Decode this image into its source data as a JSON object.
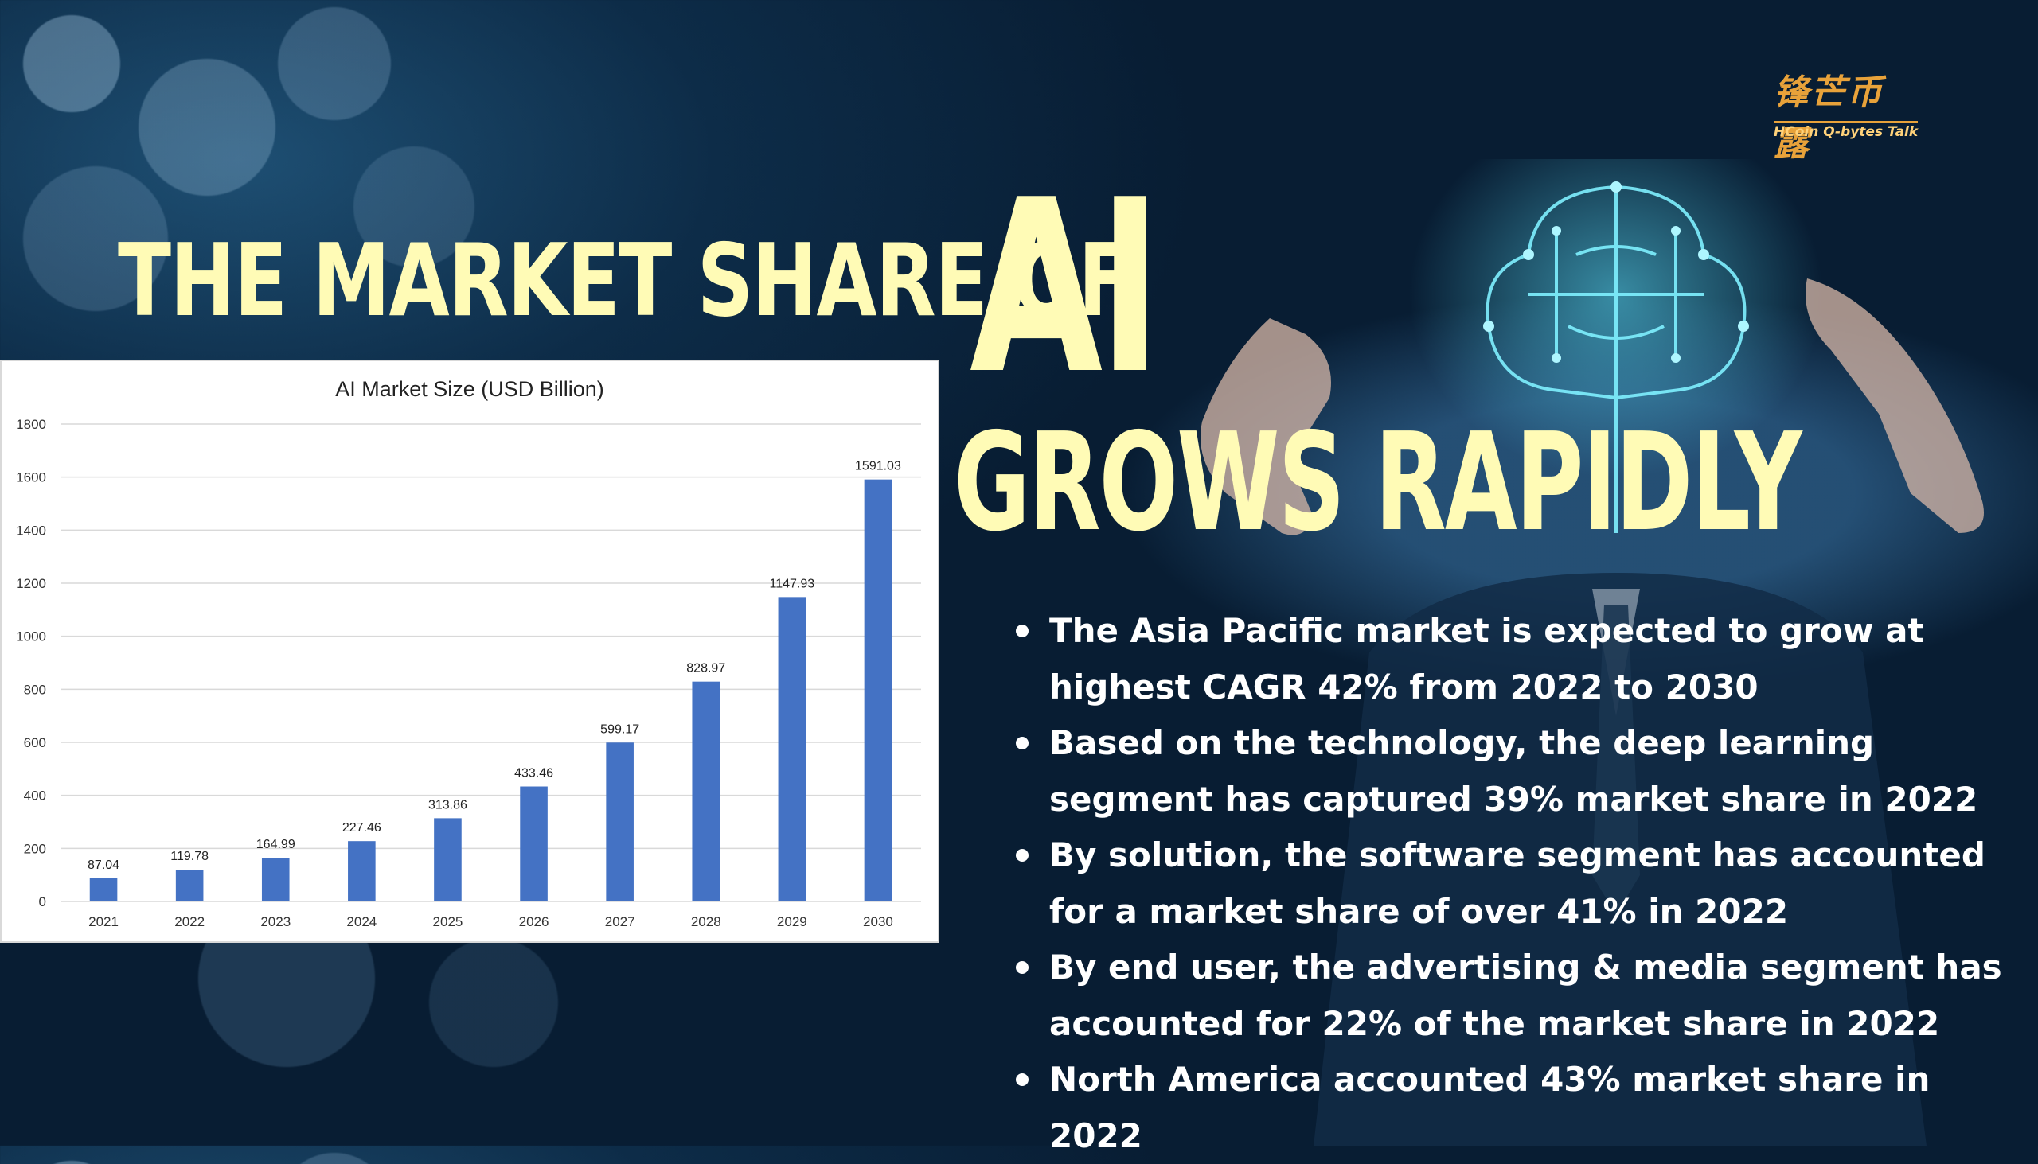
{
  "brand": {
    "logo_cn": "锋芒币露",
    "logo_en": "HCoin Q-bytes Talk"
  },
  "headline": {
    "line1": "THE MARKET SHARE OF",
    "ai": "AI",
    "line2": "GROWS RAPIDLY"
  },
  "bullets": [
    "The Asia Pacific market is expected to grow at highest CAGR 42% from 2022 to 2030",
    "Based on the technology, the deep learning segment has captured 39% market share in 2022",
    "By solution, the software segment has accounted for a market share of over 41% in 2022",
    "By end user, the advertising & media segment has accounted for 22% of the market share in 2022",
    "North America accounted 43% market share in 2022"
  ],
  "colors": {
    "headline": "#fffbb6",
    "bar": "#4472c4",
    "background": "#0d2c48",
    "logo": "#e8a23a"
  },
  "chart_data": {
    "type": "bar",
    "title": "AI Market Size (USD Billion)",
    "xlabel": "",
    "ylabel": "",
    "categories": [
      "2021",
      "2022",
      "2023",
      "2024",
      "2025",
      "2026",
      "2027",
      "2028",
      "2029",
      "2030"
    ],
    "values": [
      87.04,
      119.78,
      164.99,
      227.46,
      313.86,
      433.46,
      599.17,
      828.97,
      1147.93,
      1591.03
    ],
    "value_labels": [
      "87.04",
      "119.78",
      "164.99",
      "227.46",
      "313.86",
      "433.46",
      "599.17",
      "828.97",
      "1147.93",
      "1591.03"
    ],
    "ylim": [
      0,
      1800
    ],
    "yticks": [
      0,
      200,
      400,
      600,
      800,
      1000,
      1200,
      1400,
      1600,
      1800
    ],
    "grid": true,
    "legend": "none"
  }
}
